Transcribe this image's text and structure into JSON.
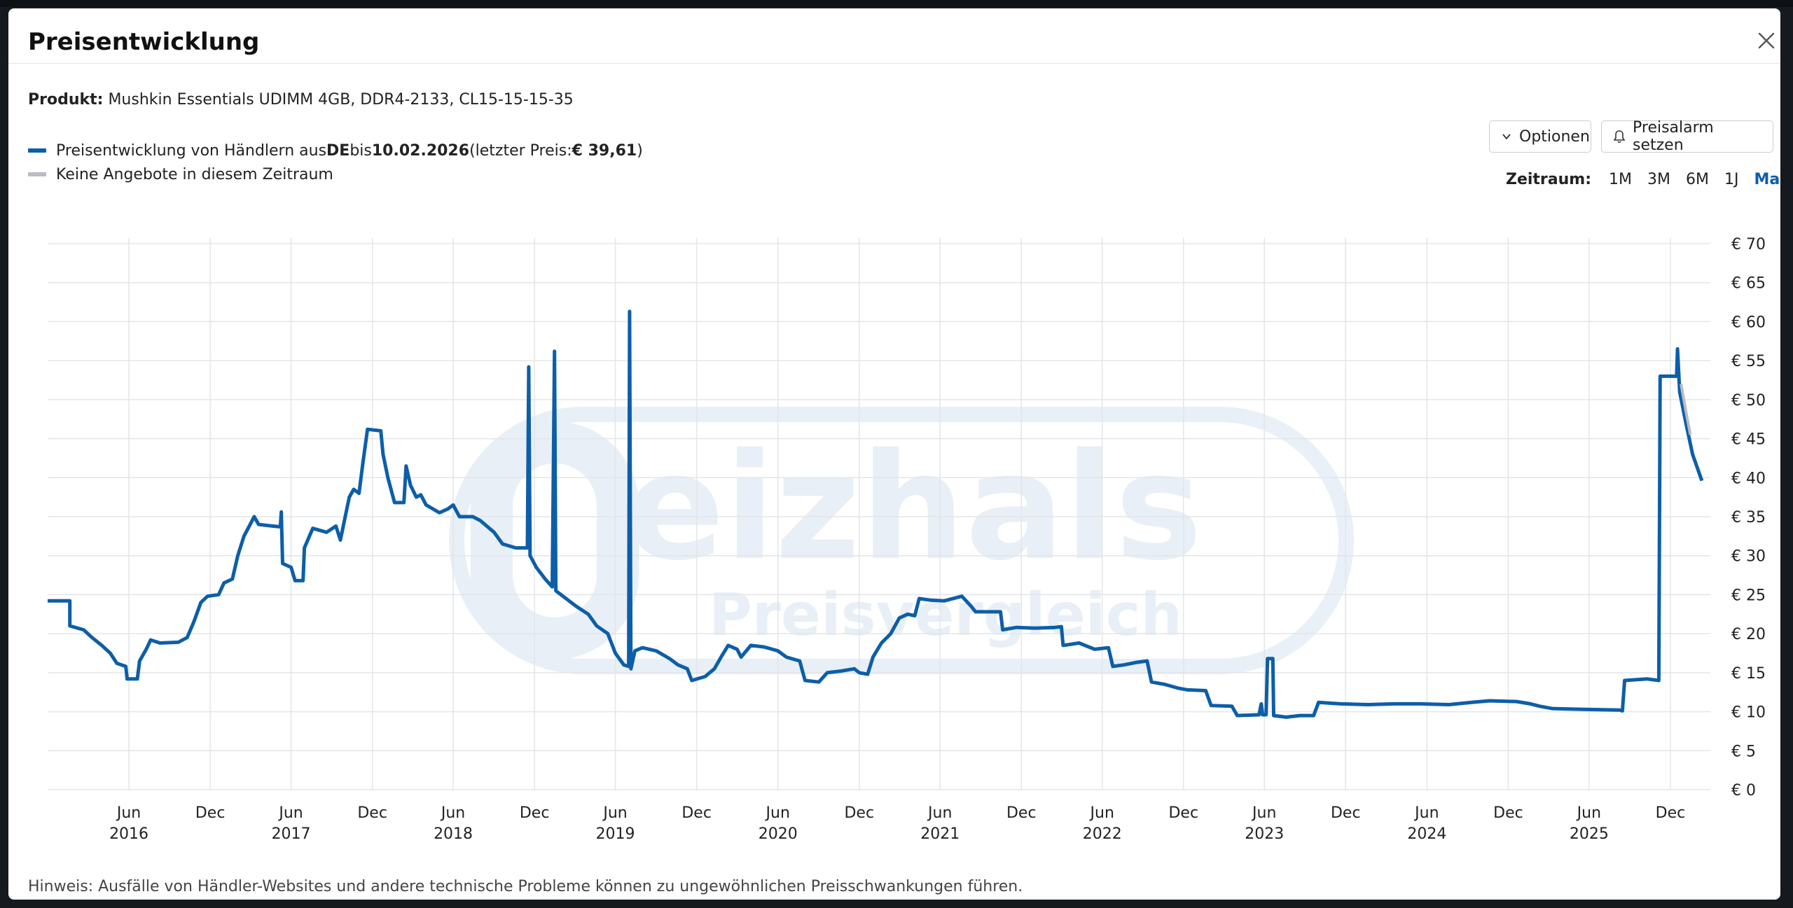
{
  "dialog": {
    "title": "Preisentwicklung",
    "close_icon": "close-icon"
  },
  "product": {
    "label": "Produkt:",
    "name": "Mushkin Essentials UDIMM 4GB, DDR4-2133, CL15-15-15-35"
  },
  "legend": {
    "series": {
      "text_before": "Preisentwicklung von Händlern aus ",
      "country": "DE",
      "text_mid": " bis ",
      "date": "10.02.2026",
      "text_last_open": " (letzter Preis: ",
      "last_price": "€ 39,61",
      "text_close": ")",
      "color": "#0d5ea8"
    },
    "no_offers": {
      "text": "Keine Angebote in diesem Zeitraum",
      "color": "#b9bcc2"
    }
  },
  "toolbar": {
    "options_label": "Optionen",
    "alarm_label": "Preisalarm setzen"
  },
  "timerange": {
    "label": "Zeitraum:",
    "options": [
      "1M",
      "3M",
      "6M",
      "1J",
      "Max"
    ],
    "active": "Max"
  },
  "watermark": {
    "brand": "eizhals",
    "sub": "Preisvergleich"
  },
  "chart_data": {
    "type": "line",
    "x_unit": "date",
    "xlim": [
      "2015-12-01",
      "2026-03-01"
    ],
    "ylim": [
      0,
      70
    ],
    "y_ticks": [
      0,
      5,
      10,
      15,
      20,
      25,
      30,
      35,
      40,
      45,
      50,
      55,
      60,
      65,
      70
    ],
    "y_tick_labels": [
      "€ 0",
      "€ 5",
      "€ 10",
      "€ 15",
      "€ 20",
      "€ 25",
      "€ 30",
      "€ 35",
      "€ 40",
      "€ 45",
      "€ 50",
      "€ 55",
      "€ 60",
      "€ 65",
      "€ 70"
    ],
    "x_ticks": [
      {
        "date": "2016-06-01",
        "label": "Jun",
        "year": "2016"
      },
      {
        "date": "2016-12-01",
        "label": "Dec",
        "year": ""
      },
      {
        "date": "2017-06-01",
        "label": "Jun",
        "year": "2017"
      },
      {
        "date": "2017-12-01",
        "label": "Dec",
        "year": ""
      },
      {
        "date": "2018-06-01",
        "label": "Jun",
        "year": "2018"
      },
      {
        "date": "2018-12-01",
        "label": "Dec",
        "year": ""
      },
      {
        "date": "2019-06-01",
        "label": "Jun",
        "year": "2019"
      },
      {
        "date": "2019-12-01",
        "label": "Dec",
        "year": ""
      },
      {
        "date": "2020-06-01",
        "label": "Jun",
        "year": "2020"
      },
      {
        "date": "2020-12-01",
        "label": "Dec",
        "year": ""
      },
      {
        "date": "2021-06-01",
        "label": "Jun",
        "year": "2021"
      },
      {
        "date": "2021-12-01",
        "label": "Dec",
        "year": ""
      },
      {
        "date": "2022-06-01",
        "label": "Jun",
        "year": "2022"
      },
      {
        "date": "2022-12-01",
        "label": "Dec",
        "year": ""
      },
      {
        "date": "2023-06-01",
        "label": "Jun",
        "year": "2023"
      },
      {
        "date": "2023-12-01",
        "label": "Dec",
        "year": ""
      },
      {
        "date": "2024-06-01",
        "label": "Jun",
        "year": "2024"
      },
      {
        "date": "2024-12-01",
        "label": "Dec",
        "year": ""
      },
      {
        "date": "2025-06-01",
        "label": "Jun",
        "year": "2025"
      },
      {
        "date": "2025-12-01",
        "label": "Dec",
        "year": ""
      }
    ],
    "grid": true,
    "series": [
      {
        "color": "#0d5ea8",
        "points": [
          [
            "2015-12-01",
            24.2
          ],
          [
            "2016-01-20",
            24.2
          ],
          [
            "2016-01-20",
            21.0
          ],
          [
            "2016-02-20",
            20.5
          ],
          [
            "2016-03-10",
            19.5
          ],
          [
            "2016-04-01",
            18.5
          ],
          [
            "2016-04-20",
            17.5
          ],
          [
            "2016-05-05",
            16.2
          ],
          [
            "2016-05-25",
            15.8
          ],
          [
            "2016-05-28",
            14.2
          ],
          [
            "2016-06-20",
            14.2
          ],
          [
            "2016-06-25",
            16.5
          ],
          [
            "2016-07-10",
            18.0
          ],
          [
            "2016-07-20",
            19.2
          ],
          [
            "2016-08-10",
            18.8
          ],
          [
            "2016-09-20",
            18.9
          ],
          [
            "2016-10-10",
            19.5
          ],
          [
            "2016-10-25",
            21.5
          ],
          [
            "2016-11-10",
            24.0
          ],
          [
            "2016-11-25",
            24.8
          ],
          [
            "2016-12-20",
            25.0
          ],
          [
            "2017-01-01",
            26.5
          ],
          [
            "2017-01-20",
            27.0
          ],
          [
            "2017-02-01",
            30.0
          ],
          [
            "2017-02-15",
            32.5
          ],
          [
            "2017-03-01",
            34.0
          ],
          [
            "2017-03-10",
            35.0
          ],
          [
            "2017-03-20",
            34.0
          ],
          [
            "2017-04-20",
            33.8
          ],
          [
            "2017-05-08",
            33.7
          ],
          [
            "2017-05-10",
            35.6
          ],
          [
            "2017-05-13",
            29.0
          ],
          [
            "2017-06-01",
            28.5
          ],
          [
            "2017-06-10",
            26.8
          ],
          [
            "2017-06-28",
            26.8
          ],
          [
            "2017-07-01",
            31.0
          ],
          [
            "2017-07-20",
            33.5
          ],
          [
            "2017-08-20",
            33.0
          ],
          [
            "2017-09-10",
            33.8
          ],
          [
            "2017-09-20",
            32.0
          ],
          [
            "2017-10-01",
            35.0
          ],
          [
            "2017-10-10",
            37.5
          ],
          [
            "2017-10-20",
            38.5
          ],
          [
            "2017-11-01",
            38.0
          ],
          [
            "2017-11-10",
            42.0
          ],
          [
            "2017-11-20",
            46.2
          ],
          [
            "2017-12-20",
            46.0
          ],
          [
            "2017-12-25",
            43.0
          ],
          [
            "2018-01-05",
            40.0
          ],
          [
            "2018-01-20",
            36.8
          ],
          [
            "2018-02-10",
            36.8
          ],
          [
            "2018-02-15",
            41.5
          ],
          [
            "2018-02-25",
            39.0
          ],
          [
            "2018-03-10",
            37.5
          ],
          [
            "2018-03-20",
            37.8
          ],
          [
            "2018-04-01",
            36.5
          ],
          [
            "2018-05-01",
            35.5
          ],
          [
            "2018-05-20",
            36.0
          ],
          [
            "2018-06-01",
            36.5
          ],
          [
            "2018-06-15",
            35.0
          ],
          [
            "2018-07-15",
            35.0
          ],
          [
            "2018-08-01",
            34.5
          ],
          [
            "2018-09-01",
            33.0
          ],
          [
            "2018-09-20",
            31.5
          ],
          [
            "2018-10-20",
            31.0
          ],
          [
            "2018-11-15",
            31.0
          ],
          [
            "2018-11-18",
            54.2
          ],
          [
            "2018-11-21",
            30.0
          ],
          [
            "2018-12-05",
            28.5
          ],
          [
            "2018-12-25",
            27.0
          ],
          [
            "2019-01-10",
            26.0
          ],
          [
            "2019-01-15",
            56.2
          ],
          [
            "2019-01-18",
            25.5
          ],
          [
            "2019-02-10",
            24.5
          ],
          [
            "2019-03-05",
            23.5
          ],
          [
            "2019-04-01",
            22.5
          ],
          [
            "2019-04-20",
            21.0
          ],
          [
            "2019-05-15",
            20.0
          ],
          [
            "2019-06-01",
            17.5
          ],
          [
            "2019-06-20",
            16.0
          ],
          [
            "2019-07-01",
            15.8
          ],
          [
            "2019-07-03",
            61.3
          ],
          [
            "2019-07-06",
            15.5
          ],
          [
            "2019-07-15",
            17.8
          ],
          [
            "2019-08-01",
            18.2
          ],
          [
            "2019-09-01",
            17.8
          ],
          [
            "2019-10-01",
            16.8
          ],
          [
            "2019-10-20",
            16.0
          ],
          [
            "2019-11-10",
            15.5
          ],
          [
            "2019-11-20",
            14.0
          ],
          [
            "2019-12-20",
            14.5
          ],
          [
            "2020-01-10",
            15.5
          ],
          [
            "2020-01-25",
            17.0
          ],
          [
            "2020-02-10",
            18.5
          ],
          [
            "2020-03-01",
            18.0
          ],
          [
            "2020-03-10",
            17.0
          ],
          [
            "2020-04-01",
            18.5
          ],
          [
            "2020-05-01",
            18.3
          ],
          [
            "2020-06-01",
            17.8
          ],
          [
            "2020-06-20",
            17.0
          ],
          [
            "2020-07-20",
            16.5
          ],
          [
            "2020-08-01",
            14.0
          ],
          [
            "2020-09-01",
            13.8
          ],
          [
            "2020-09-20",
            15.0
          ],
          [
            "2020-10-20",
            15.2
          ],
          [
            "2020-11-20",
            15.5
          ],
          [
            "2020-12-01",
            15.0
          ],
          [
            "2020-12-20",
            14.8
          ],
          [
            "2021-01-01",
            17.0
          ],
          [
            "2021-01-20",
            18.8
          ],
          [
            "2021-02-10",
            20.0
          ],
          [
            "2021-03-01",
            22.0
          ],
          [
            "2021-03-20",
            22.5
          ],
          [
            "2021-04-05",
            22.3
          ],
          [
            "2021-04-15",
            24.5
          ],
          [
            "2021-05-10",
            24.3
          ],
          [
            "2021-06-10",
            24.2
          ],
          [
            "2021-07-20",
            24.8
          ],
          [
            "2021-08-10",
            23.5
          ],
          [
            "2021-08-20",
            22.8
          ],
          [
            "2021-10-15",
            22.8
          ],
          [
            "2021-10-20",
            20.5
          ],
          [
            "2021-11-20",
            20.8
          ],
          [
            "2022-01-01",
            20.7
          ],
          [
            "2022-02-15",
            20.8
          ],
          [
            "2022-03-01",
            20.9
          ],
          [
            "2022-03-05",
            18.5
          ],
          [
            "2022-04-10",
            18.8
          ],
          [
            "2022-05-15",
            18.0
          ],
          [
            "2022-06-15",
            18.2
          ],
          [
            "2022-06-25",
            15.8
          ],
          [
            "2022-07-20",
            16.0
          ],
          [
            "2022-08-15",
            16.3
          ],
          [
            "2022-09-10",
            16.5
          ],
          [
            "2022-09-20",
            13.8
          ],
          [
            "2022-10-20",
            13.5
          ],
          [
            "2022-11-20",
            13.0
          ],
          [
            "2022-12-10",
            12.8
          ],
          [
            "2023-01-20",
            12.7
          ],
          [
            "2023-02-01",
            10.8
          ],
          [
            "2023-03-20",
            10.7
          ],
          [
            "2023-04-01",
            9.5
          ],
          [
            "2023-05-20",
            9.6
          ],
          [
            "2023-05-25",
            11.0
          ],
          [
            "2023-05-28",
            9.6
          ],
          [
            "2023-06-05",
            9.6
          ],
          [
            "2023-06-08",
            16.8
          ],
          [
            "2023-06-20",
            16.8
          ],
          [
            "2023-06-22",
            9.5
          ],
          [
            "2023-07-20",
            9.3
          ],
          [
            "2023-08-20",
            9.5
          ],
          [
            "2023-09-20",
            9.5
          ],
          [
            "2023-10-01",
            11.2
          ],
          [
            "2023-11-20",
            11.0
          ],
          [
            "2024-01-20",
            10.9
          ],
          [
            "2024-03-20",
            11.0
          ],
          [
            "2024-05-20",
            11.0
          ],
          [
            "2024-07-20",
            10.9
          ],
          [
            "2024-09-10",
            11.2
          ],
          [
            "2024-10-20",
            11.4
          ],
          [
            "2024-12-20",
            11.3
          ],
          [
            "2025-01-20",
            11.0
          ],
          [
            "2025-02-10",
            10.7
          ],
          [
            "2025-03-10",
            10.4
          ],
          [
            "2025-05-20",
            10.3
          ],
          [
            "2025-08-10",
            10.2
          ],
          [
            "2025-08-15",
            10.1
          ],
          [
            "2025-08-20",
            14.0
          ],
          [
            "2025-10-10",
            14.2
          ],
          [
            "2025-11-05",
            14.0
          ],
          [
            "2025-11-08",
            53.0
          ],
          [
            "2025-12-15",
            53.0
          ],
          [
            "2025-12-17",
            56.5
          ],
          [
            "2025-12-22",
            51.0
          ],
          [
            "2026-01-05",
            47.0
          ],
          [
            "2026-01-20",
            43.0
          ],
          [
            "2026-02-10",
            39.6
          ]
        ]
      },
      {
        "color": "#b9bcc2",
        "points": [
          [
            "2025-12-25",
            52.0
          ],
          [
            "2026-01-05",
            48.5
          ],
          [
            "2026-01-15",
            45.5
          ]
        ]
      }
    ]
  },
  "note": "Hinweis: Ausfälle von Händler-Websites und andere technische Probleme können zu ungewöhnlichen Preisschwankungen führen."
}
